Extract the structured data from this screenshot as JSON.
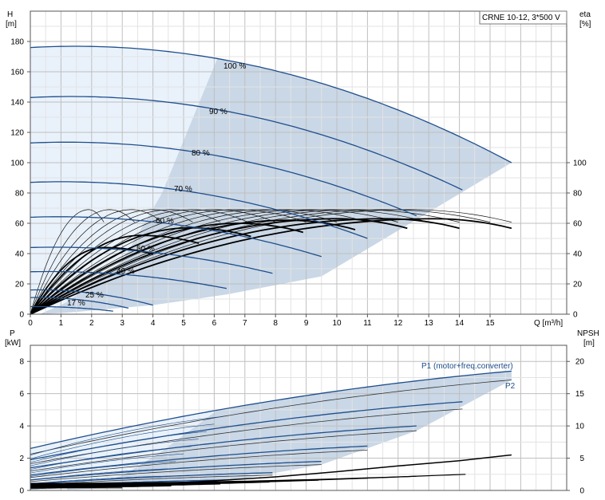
{
  "chart_data": [
    {
      "type": "line",
      "title": "CRNE 10-12, 3*500 V",
      "ylabel": "H",
      "yunit": "[m]",
      "y2label": "eta",
      "y2unit": "[%]",
      "xlabel": "Q [m³/h]",
      "xlim": [
        0,
        17.5
      ],
      "ylim": [
        0,
        200
      ],
      "xticks": [
        "0",
        "1",
        "2",
        "3",
        "4",
        "5",
        "6",
        "7",
        "8",
        "9",
        "10",
        "11",
        "12",
        "13",
        "14",
        "15"
      ],
      "yticks": [
        "0",
        "20",
        "40",
        "60",
        "80",
        "100",
        "120",
        "140",
        "160",
        "180"
      ],
      "y2ticks": [
        "0",
        "20",
        "40",
        "60",
        "80",
        "100"
      ],
      "grid": true,
      "colors": {
        "curve": "#1f4e8c",
        "region_light": "#e9f2fb",
        "region_dark": "#c9d7e6"
      },
      "head_curves": [
        {
          "label": "100 %",
          "shutoff": 176,
          "qmax": 15.7,
          "hend": 100
        },
        {
          "label": "90 %",
          "shutoff": 143,
          "qmax": 14.1,
          "hend": 82
        },
        {
          "label": "80 %",
          "shutoff": 113,
          "qmax": 12.6,
          "hend": 65
        },
        {
          "label": "70 %",
          "shutoff": 87,
          "qmax": 11.0,
          "hend": 50
        },
        {
          "label": "60 %",
          "shutoff": 64,
          "qmax": 9.5,
          "hend": 38
        },
        {
          "label": "50 %",
          "shutoff": 44,
          "qmax": 7.9,
          "hend": 27
        },
        {
          "label": "40 %",
          "shutoff": 28,
          "qmax": 6.4,
          "hend": 17
        },
        {
          "label": "",
          "shutoff": 16,
          "qmax": 4.0,
          "hend": 6
        },
        {
          "label": "25 %",
          "shutoff": 11,
          "qmax": 3.2,
          "hend": 4
        },
        {
          "label": "17 %",
          "shutoff": 5,
          "qmax": 2.7,
          "hend": 2
        }
      ],
      "eff_curves": [
        {
          "qpeak": 1.9,
          "peak": 69,
          "qend": 2.4
        },
        {
          "qpeak": 2.6,
          "peak": 69,
          "qend": 3.4
        },
        {
          "qpeak": 3.3,
          "peak": 69,
          "qend": 4.3
        },
        {
          "qpeak": 4.0,
          "peak": 69,
          "qend": 5.3
        },
        {
          "qpeak": 4.6,
          "peak": 69,
          "qend": 6.2
        },
        {
          "qpeak": 5.3,
          "peak": 69,
          "qend": 7.1
        },
        {
          "qpeak": 6.0,
          "peak": 69,
          "qend": 8.0
        },
        {
          "qpeak": 6.7,
          "peak": 69,
          "qend": 9.0
        },
        {
          "qpeak": 7.5,
          "peak": 69,
          "qend": 10.0
        },
        {
          "qpeak": 8.3,
          "peak": 69,
          "qend": 11.0
        },
        {
          "qpeak": 9.1,
          "peak": 69,
          "qend": 12.0
        },
        {
          "qpeak": 9.9,
          "peak": 69,
          "qend": 13.0
        },
        {
          "qpeak": 10.7,
          "peak": 69,
          "qend": 14.0
        },
        {
          "qpeak": 11.6,
          "peak": 69,
          "qend": 15.0
        },
        {
          "qpeak": 12.4,
          "peak": 69,
          "qend": 15.7
        }
      ],
      "eff_bold_curves": [
        {
          "qpeak": 2.4,
          "peak": 44,
          "qend": 4.0
        },
        {
          "qpeak": 3.6,
          "peak": 52,
          "qend": 5.5
        },
        {
          "qpeak": 5.2,
          "peak": 57,
          "qend": 7.2
        },
        {
          "qpeak": 6.8,
          "peak": 60,
          "qend": 8.9
        },
        {
          "qpeak": 8.4,
          "peak": 62,
          "qend": 10.6
        },
        {
          "qpeak": 10.0,
          "peak": 63,
          "qend": 12.3
        },
        {
          "qpeak": 11.6,
          "peak": 63,
          "qend": 14.0
        },
        {
          "qpeak": 13.2,
          "peak": 63,
          "qend": 15.7
        }
      ]
    },
    {
      "type": "line",
      "ylabel": "P",
      "yunit": "[kW]",
      "y2label": "NPSH",
      "y2unit": "[m]",
      "xlim": [
        0,
        17.5
      ],
      "ylim": [
        0,
        9
      ],
      "y2lim": [
        0,
        22.5
      ],
      "yticks": [
        "0",
        "2",
        "4",
        "6",
        "8"
      ],
      "y2ticks": [
        "0",
        "5",
        "10",
        "15",
        "20"
      ],
      "grid": true,
      "series_labels": {
        "p1": "P1 (motor+freq.converter)",
        "p2": "P2"
      },
      "p1_curves": [
        {
          "start": 2.6,
          "qmax": 15.7,
          "pend": 7.4
        },
        {
          "start": 1.9,
          "qmax": 14.1,
          "pend": 5.5
        },
        {
          "start": 1.4,
          "qmax": 12.6,
          "pend": 4.0
        },
        {
          "start": 0.95,
          "qmax": 11.0,
          "pend": 2.75
        },
        {
          "start": 0.65,
          "qmax": 9.5,
          "pend": 1.8
        },
        {
          "start": 0.4,
          "qmax": 7.9,
          "pend": 1.1
        },
        {
          "start": 0.25,
          "qmax": 6.4,
          "pend": 0.65
        },
        {
          "start": 0.12,
          "qmax": 4.0,
          "pend": 0.3
        }
      ],
      "p2_curves": [
        {
          "start": 2.25,
          "qmax": 15.7,
          "pend": 6.85
        },
        {
          "start": 1.65,
          "qmax": 14.1,
          "pend": 5.05
        },
        {
          "start": 1.2,
          "qmax": 12.6,
          "pend": 3.7
        },
        {
          "start": 0.8,
          "qmax": 11.0,
          "pend": 2.5
        },
        {
          "start": 0.55,
          "qmax": 9.5,
          "pend": 1.6
        },
        {
          "start": 0.33,
          "qmax": 7.9,
          "pend": 0.95
        },
        {
          "start": 0.2,
          "qmax": 6.4,
          "pend": 0.55
        },
        {
          "start": 0.1,
          "qmax": 4.0,
          "pend": 0.25
        }
      ],
      "npsh": {
        "x": [
          0,
          2,
          4,
          6,
          8,
          10,
          12,
          14,
          15.7
        ],
        "y": [
          0.5,
          0.7,
          1.0,
          1.5,
          2.1,
          2.9,
          3.8,
          4.6,
          5.5
        ]
      }
    }
  ]
}
